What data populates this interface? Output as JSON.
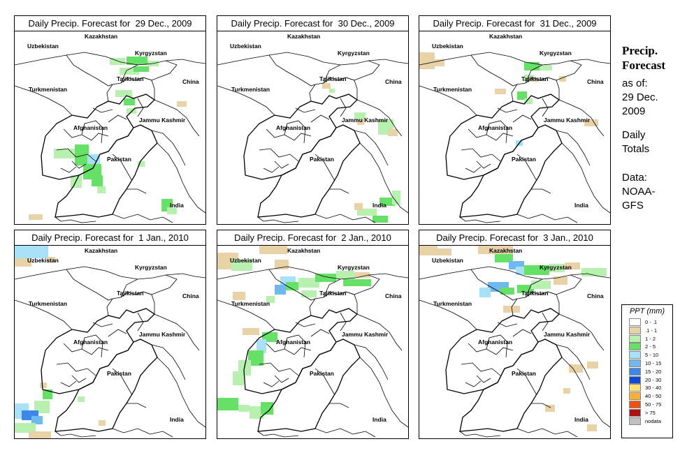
{
  "sidebar": {
    "title_line1": "Precip.",
    "title_line2": "Forecast",
    "asof_line1": "as of:",
    "asof_line2": "29 Dec.",
    "asof_line3": "2009",
    "totals_line1": "Daily",
    "totals_line2": "Totals",
    "data_line1": "Data:",
    "data_line2": "NOAA-",
    "data_line3": "GFS"
  },
  "legend": {
    "title": "PPT (mm)",
    "items": [
      {
        "label": "0 - .1",
        "color": "#ffffff"
      },
      {
        "label": ".1 - 1",
        "color": "#e8d2a8"
      },
      {
        "label": "1 - 2",
        "color": "#b8f0b0"
      },
      {
        "label": "2 - 5",
        "color": "#66e066"
      },
      {
        "label": "5 - 10",
        "color": "#a8e0f8"
      },
      {
        "label": "10 - 15",
        "color": "#70b8f0"
      },
      {
        "label": "15 - 20",
        "color": "#3c88e8"
      },
      {
        "label": "20 - 30",
        "color": "#1048d8"
      },
      {
        "label": "30 - 40",
        "color": "#ffe070"
      },
      {
        "label": "40 - 50",
        "color": "#ffb030"
      },
      {
        "label": "50 - 75",
        "color": "#f05010"
      },
      {
        "label": "> 75",
        "color": "#b01010"
      },
      {
        "label": "nodata",
        "color": "#c0c0c0"
      }
    ]
  },
  "map_labels": {
    "kazakhstan": "Kazakhstan",
    "uzbekistan": "Uzbekistan",
    "kyrgyzstan": "Kyrgyzstan",
    "tajikistan": "Tajikistan",
    "turkmenistan": "Turkmenistan",
    "china": "China",
    "jammu_kashmir": "Jammu Kashmir",
    "afghanistan": "Afghanistan",
    "pakistan": "Pakistan",
    "india": "India"
  },
  "panels": [
    {
      "title": "Daily Precip. Forecast for  29 Dec., 2009"
    },
    {
      "title": "Daily Precip. Forecast for  30 Dec., 2009"
    },
    {
      "title": "Daily Precip. Forecast for  31 Dec., 2009"
    },
    {
      "title": "Daily Precip. Forecast for  1 Jan., 2010"
    },
    {
      "title": "Daily Precip. Forecast for  2 Jan., 2010"
    },
    {
      "title": "Daily Precip. Forecast for  3 Jan., 2010"
    }
  ]
}
